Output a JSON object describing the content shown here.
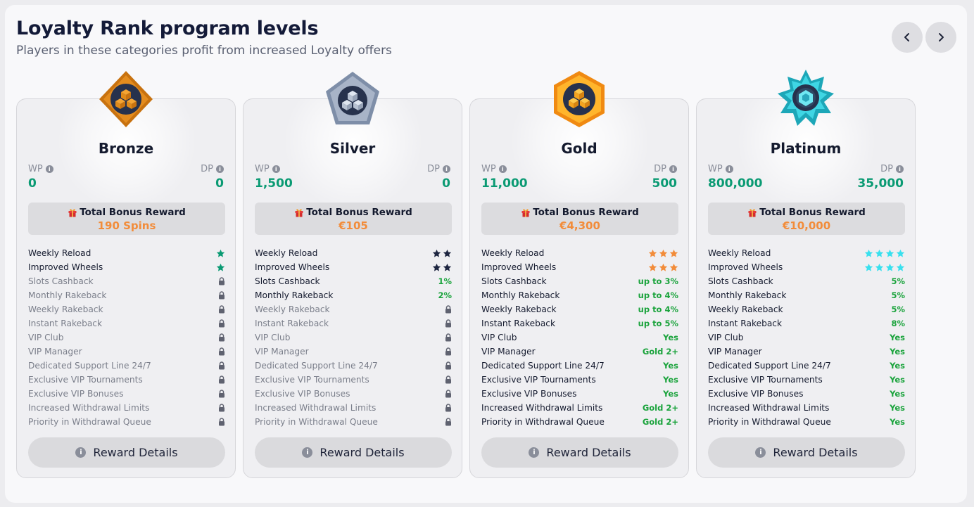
{
  "header": {
    "title": "Loyalty Rank program levels",
    "subtitle": "Players in these categories profit from increased Loyalty offers"
  },
  "labels": {
    "wp": "WP",
    "dp": "DP",
    "total_bonus": "Total Bonus Reward",
    "reward_details": "Reward Details"
  },
  "colors": {
    "points": "#0a9a73",
    "bonus": "#f28c3a",
    "enabled_value": "#1aa33c"
  },
  "features": [
    "Weekly Reload",
    "Improved Wheels",
    "Slots Cashback",
    "Monthly Rakeback",
    "Weekly Rakeback",
    "Instant Rakeback",
    "VIP Club",
    "VIP Manager",
    "Dedicated Support Line 24/7",
    "Exclusive VIP Tournaments",
    "Exclusive VIP Bonuses",
    "Increased Withdrawal Limits",
    "Priority in Withdrawal Queue"
  ],
  "ranks": [
    {
      "name": "Bronze",
      "badge_icon": "bronze-diamond-badge",
      "wp": "0",
      "dp": "0",
      "bonus": "190 Spins",
      "star_color": "#0a9a73",
      "values": [
        {
          "stars": 1
        },
        {
          "stars": 1
        },
        {
          "locked": true
        },
        {
          "locked": true
        },
        {
          "locked": true
        },
        {
          "locked": true
        },
        {
          "locked": true
        },
        {
          "locked": true
        },
        {
          "locked": true
        },
        {
          "locked": true
        },
        {
          "locked": true
        },
        {
          "locked": true
        },
        {
          "locked": true
        }
      ]
    },
    {
      "name": "Silver",
      "badge_icon": "silver-pentagon-badge",
      "wp": "1,500",
      "dp": "0",
      "bonus": "€105",
      "star_color": "#1d2540",
      "values": [
        {
          "stars": 2
        },
        {
          "stars": 2
        },
        {
          "text": "1%"
        },
        {
          "text": "2%"
        },
        {
          "locked": true
        },
        {
          "locked": true
        },
        {
          "locked": true
        },
        {
          "locked": true
        },
        {
          "locked": true
        },
        {
          "locked": true
        },
        {
          "locked": true
        },
        {
          "locked": true
        },
        {
          "locked": true
        }
      ]
    },
    {
      "name": "Gold",
      "badge_icon": "gold-hexagon-badge",
      "wp": "11,000",
      "dp": "500",
      "bonus": "€4,300",
      "star_color": "#f28c3a",
      "values": [
        {
          "stars": 3
        },
        {
          "stars": 3
        },
        {
          "text": "up to 3%"
        },
        {
          "text": "up to 4%"
        },
        {
          "text": "up to 4%"
        },
        {
          "text": "up to 5%"
        },
        {
          "text": "Yes"
        },
        {
          "text": "Gold 2+"
        },
        {
          "text": "Yes"
        },
        {
          "text": "Yes"
        },
        {
          "text": "Yes"
        },
        {
          "text": "Gold 2+"
        },
        {
          "text": "Gold 2+"
        }
      ]
    },
    {
      "name": "Platinum",
      "badge_icon": "platinum-star-badge",
      "wp": "800,000",
      "dp": "35,000",
      "bonus": "€10,000",
      "star_color": "#39e0ee",
      "values": [
        {
          "stars": 4
        },
        {
          "stars": 4
        },
        {
          "text": "5%"
        },
        {
          "text": "5%"
        },
        {
          "text": "5%"
        },
        {
          "text": "8%"
        },
        {
          "text": "Yes"
        },
        {
          "text": "Yes"
        },
        {
          "text": "Yes"
        },
        {
          "text": "Yes"
        },
        {
          "text": "Yes"
        },
        {
          "text": "Yes"
        },
        {
          "text": "Yes"
        }
      ]
    }
  ]
}
